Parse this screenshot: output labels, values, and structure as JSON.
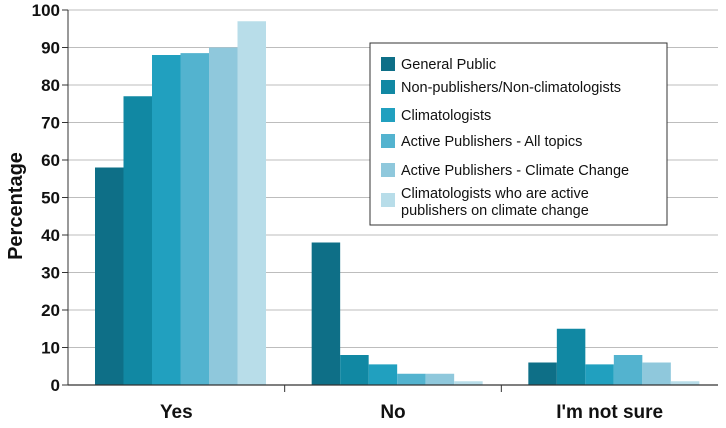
{
  "chart_data": {
    "type": "bar",
    "ylabel": "Percentage",
    "ylim": [
      0,
      100
    ],
    "yticks": [
      0,
      10,
      20,
      30,
      40,
      50,
      60,
      70,
      80,
      90,
      100
    ],
    "categories": [
      "Yes",
      "No",
      "I'm not sure"
    ],
    "legend_position": "top-right",
    "series": [
      {
        "name": "General Public",
        "color": "#0e6f87",
        "values": [
          58,
          38,
          6
        ]
      },
      {
        "name": "Non-publishers/Non-climatologists",
        "color": "#1188a3",
        "values": [
          77,
          8,
          15
        ]
      },
      {
        "name": "Climatologists",
        "color": "#21a0bf",
        "values": [
          88,
          5.5,
          5.5
        ]
      },
      {
        "name": "Active Publishers - All topics",
        "color": "#53b3cf",
        "values": [
          88.5,
          3,
          8
        ]
      },
      {
        "name": "Active Publishers - Climate Change",
        "color": "#8fc8dc",
        "values": [
          90,
          3,
          6
        ]
      },
      {
        "name": "Climatologists who are active publishers on climate change",
        "color": "#b8dde9",
        "values": [
          97,
          1,
          1
        ]
      }
    ]
  }
}
